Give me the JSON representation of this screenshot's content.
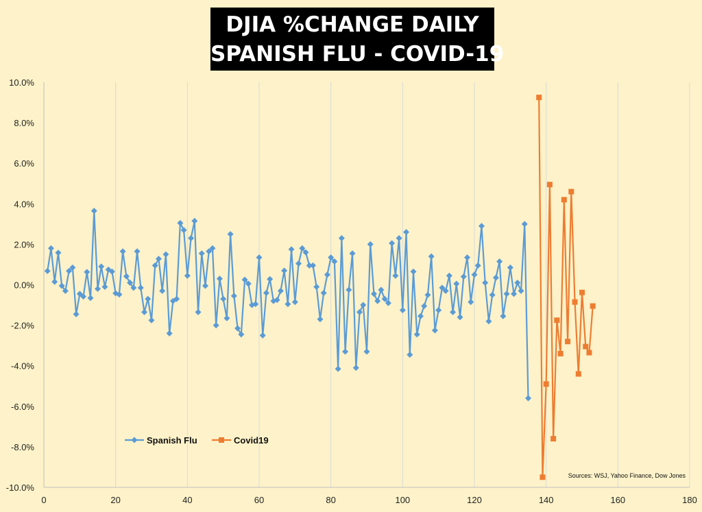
{
  "chart_data": {
    "type": "line",
    "title": [
      "DJIA %CHANGE DAILY",
      "SPANISH FLU - COVID-19"
    ],
    "xlabel": "",
    "ylabel": "",
    "xlim": [
      0,
      180
    ],
    "ylim": [
      -0.1,
      0.1
    ],
    "x_ticks": [
      "0",
      "20",
      "40",
      "60",
      "80",
      "100",
      "120",
      "140",
      "160",
      "180"
    ],
    "y_ticks": [
      "10.0%",
      "8.0%",
      "6.0%",
      "4.0%",
      "2.0%",
      "0.0%",
      "-2.0%",
      "-4.0%",
      "-6.0%",
      "-8.0%",
      "-10.0%"
    ],
    "grid": "vertical",
    "legend": "bottom-left",
    "annotation": "Sources: WSJ, Yahoo Finance, Dow Jones",
    "series": [
      {
        "name": "Spanish Flu",
        "color": "#5b9bd5",
        "marker": "diamond",
        "x_start": 1,
        "values": [
          0.0068,
          0.018,
          0.0015,
          0.0158,
          -0.0005,
          -0.003,
          0.0068,
          0.0085,
          -0.0145,
          -0.0045,
          -0.0058,
          0.0063,
          -0.0065,
          0.0365,
          -0.002,
          0.009,
          -0.001,
          0.0075,
          0.0065,
          -0.0042,
          -0.0048,
          0.0165,
          0.0042,
          0.001,
          -0.0015,
          0.0165,
          -0.0015,
          -0.0135,
          -0.007,
          -0.0175,
          0.0095,
          0.0128,
          -0.003,
          0.015,
          -0.024,
          -0.008,
          -0.007,
          0.0305,
          0.027,
          0.0045,
          0.023,
          0.0315,
          -0.0135,
          0.0155,
          -0.0005,
          0.0165,
          0.018,
          -0.02,
          0.003,
          -0.007,
          -0.0165,
          0.025,
          -0.0055,
          -0.0215,
          -0.0245,
          0.0025,
          0.0005,
          -0.01,
          -0.0095,
          0.0135,
          -0.025,
          -0.004,
          0.0028,
          -0.008,
          -0.0075,
          -0.003,
          0.007,
          -0.0095,
          0.0175,
          -0.0085,
          0.0105,
          0.018,
          0.016,
          0.0095,
          0.0095,
          -0.001,
          -0.017,
          -0.004,
          0.005,
          0.0135,
          0.0115,
          -0.0415,
          0.023,
          -0.033,
          -0.0025,
          0.0155,
          -0.041,
          -0.0135,
          -0.01,
          -0.033,
          0.02,
          -0.0045,
          -0.008,
          -0.0025,
          -0.007,
          -0.009,
          0.0205,
          0.0045,
          0.023,
          -0.0125,
          0.026,
          -0.0345,
          0.0065,
          -0.0245,
          -0.0155,
          -0.0105,
          -0.005,
          0.014,
          -0.0225,
          -0.0125,
          -0.0015,
          -0.003,
          0.0045,
          -0.0135,
          0.0005,
          -0.016,
          0.004,
          0.0135,
          -0.0085,
          0.005,
          0.0095,
          0.029,
          0.001,
          -0.018,
          -0.005,
          0.0035,
          0.0115,
          -0.0155,
          -0.0045,
          0.0085,
          -0.0045,
          0.001,
          -0.003,
          0.03,
          -0.056
        ]
      },
      {
        "name": "Covid19",
        "color": "#ed7d31",
        "marker": "square",
        "x_start": 138,
        "values": [
          0.0925,
          -0.095,
          -0.049,
          0.0495,
          -0.076,
          -0.0175,
          -0.034,
          0.042,
          -0.028,
          0.046,
          -0.0085,
          -0.044,
          -0.0038,
          -0.0305,
          -0.0335,
          -0.0105
        ]
      }
    ]
  }
}
